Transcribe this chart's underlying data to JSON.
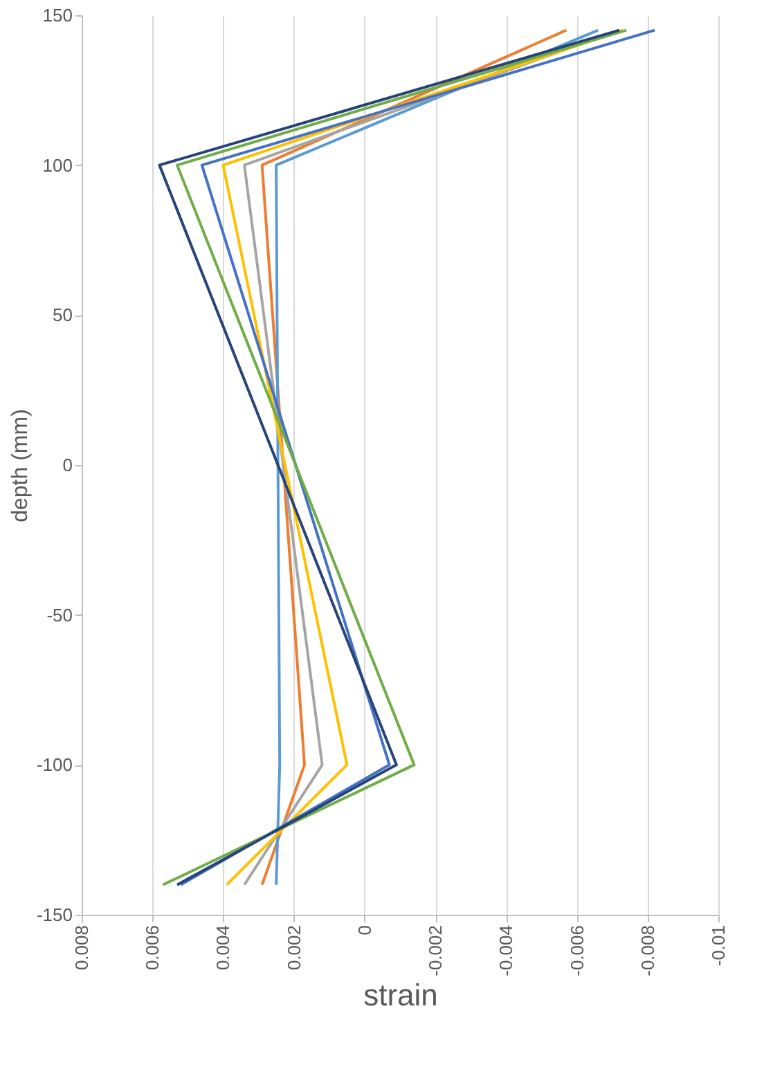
{
  "chart_data": {
    "type": "line",
    "xlabel": "strain",
    "ylabel": "depth (mm)",
    "xlim": [
      0.008,
      -0.01
    ],
    "xticks": [
      0.008,
      0.006,
      0.004,
      0.002,
      0,
      -0.002,
      -0.004,
      -0.006,
      -0.008,
      -0.01
    ],
    "ylim": [
      -150,
      150
    ],
    "yticks": [
      -150,
      -100,
      -50,
      0,
      50,
      100,
      150
    ],
    "grid": "x",
    "legend": false,
    "marker": "none",
    "line_style": "solid",
    "series": [
      {
        "color": "#ed7d31",
        "x": [
          -0.0057,
          0.0029,
          0.0017,
          0.0029
        ],
        "values": [
          145,
          100,
          -100,
          -140
        ]
      },
      {
        "color": "#5b9bd5",
        "x": [
          -0.0066,
          0.0025,
          0.0024,
          0.0025
        ],
        "values": [
          145,
          100,
          -100,
          -140
        ]
      },
      {
        "color": "#a5a5a5",
        "x": [
          -0.0072,
          0.0034,
          0.0012,
          0.0034
        ],
        "values": [
          145,
          100,
          -100,
          -140
        ]
      },
      {
        "color": "#ffc000",
        "x": [
          -0.0073,
          0.004,
          0.0005,
          0.0039
        ],
        "values": [
          145,
          100,
          -100,
          -140
        ]
      },
      {
        "color": "#4472c4",
        "x": [
          -0.0082,
          0.0046,
          -0.0007,
          0.0052
        ],
        "values": [
          145,
          100,
          -100,
          -140
        ]
      },
      {
        "color": "#70ad47",
        "x": [
          -0.0074,
          0.0053,
          -0.0014,
          0.0057
        ],
        "values": [
          145,
          100,
          -100,
          -140
        ]
      },
      {
        "color": "#264478",
        "x": [
          -0.0072,
          0.0058,
          -0.0009,
          0.0053
        ],
        "values": [
          145,
          100,
          -100,
          -140
        ]
      }
    ]
  }
}
